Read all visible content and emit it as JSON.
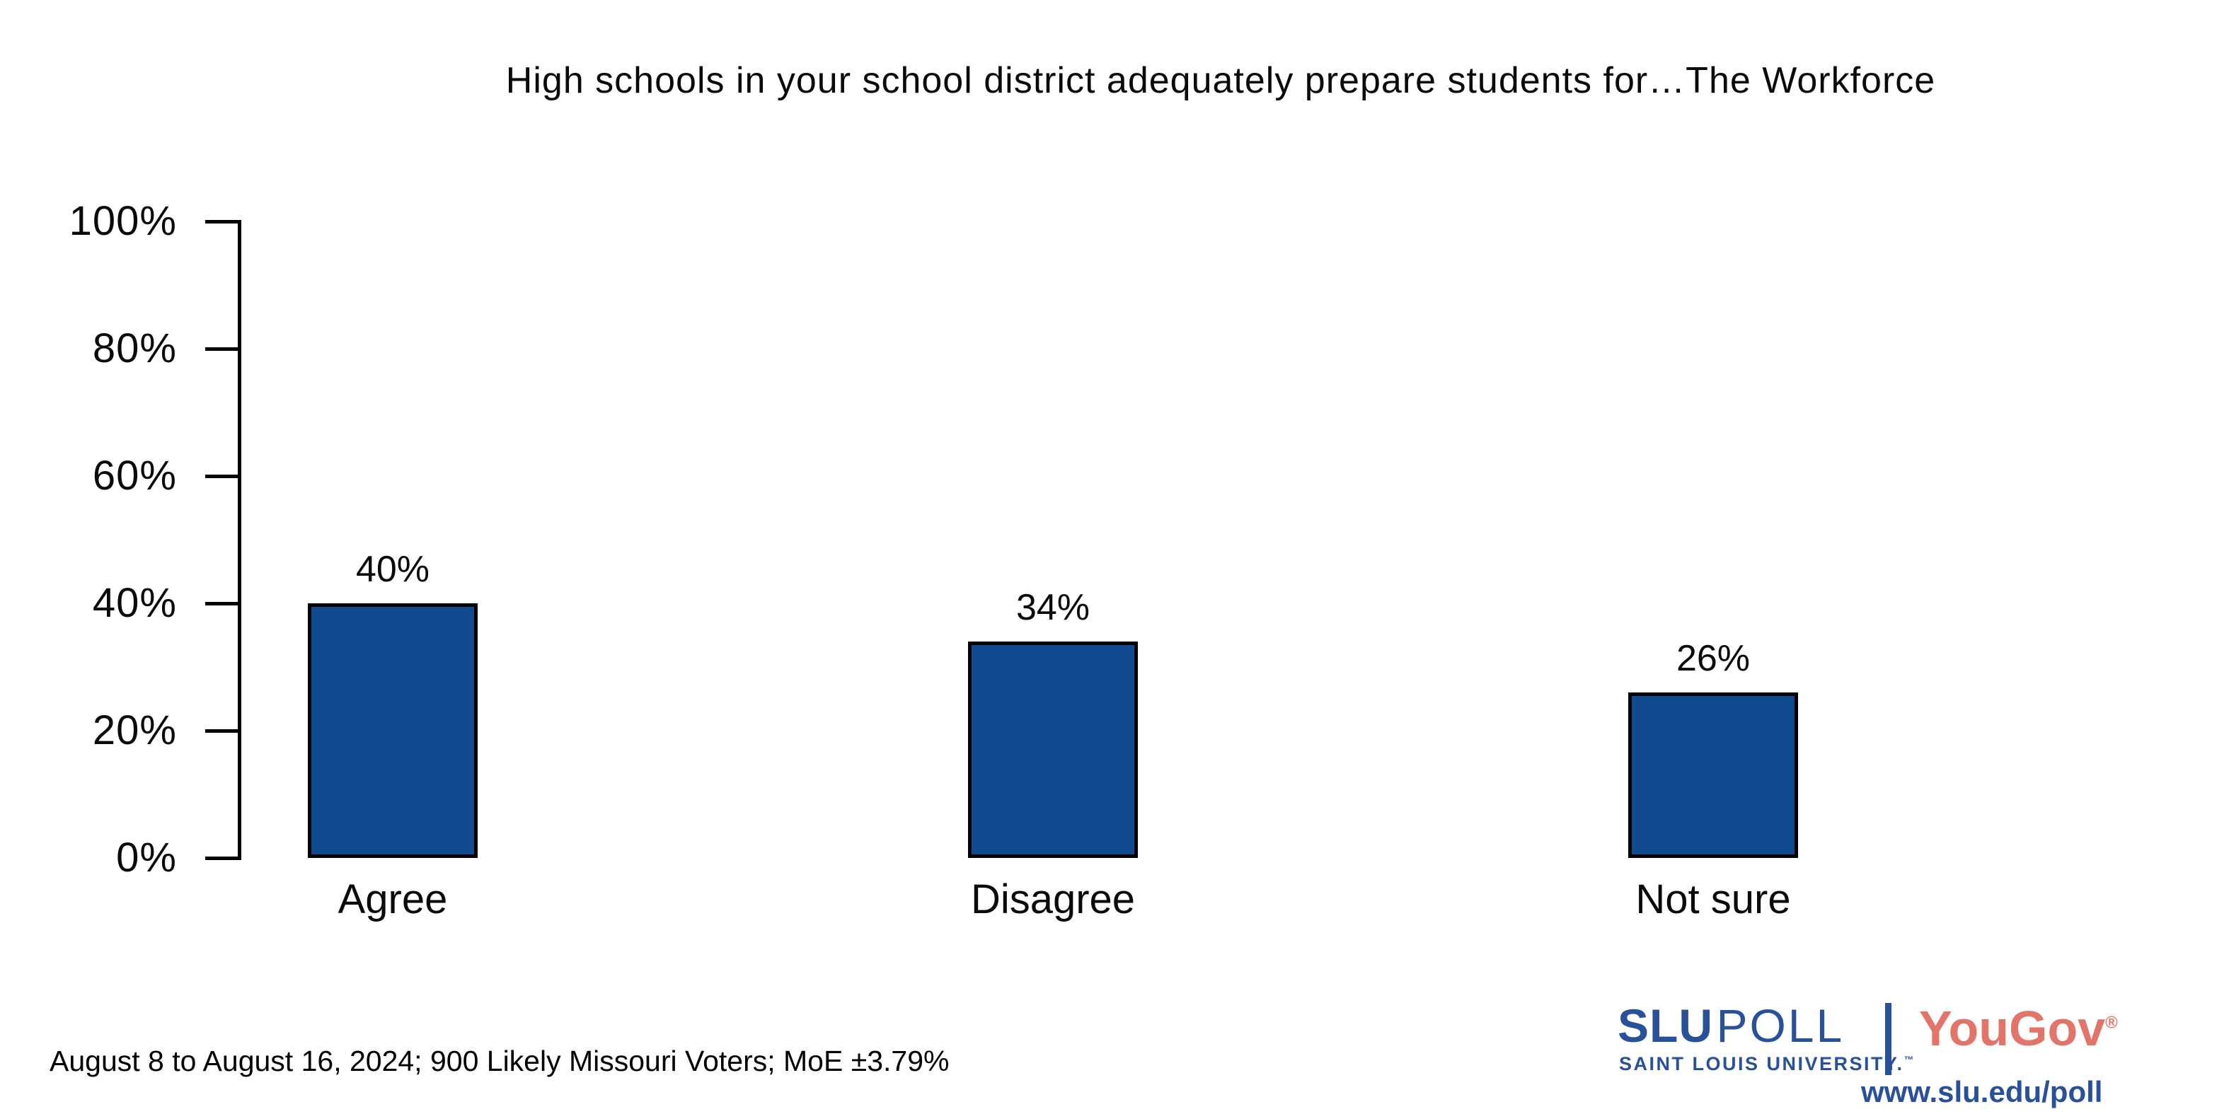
{
  "title": "High schools in your school district adequately prepare students for…The Workforce",
  "chart_data": {
    "type": "bar",
    "title": "High schools in your school district adequately prepare students for…The Workforce",
    "categories": [
      "Agree",
      "Disagree",
      "Not sure"
    ],
    "values": [
      40,
      34,
      26
    ],
    "value_labels": [
      "40%",
      "34%",
      "26%"
    ],
    "xlabel": "",
    "ylabel": "",
    "ylim": [
      0,
      100
    ],
    "ytick_values": [
      0,
      20,
      40,
      60,
      80,
      100
    ],
    "ytick_labels": [
      "0%",
      "20%",
      "40%",
      "60%",
      "80%",
      "100%"
    ],
    "grid": false,
    "legend": false,
    "bar_color": "#124A8F",
    "bar_border_color": "#000000",
    "axis_color": "#000000"
  },
  "footer": {
    "note": "August 8 to August 16, 2024; 900 Likely Missouri Voters; MoE ±3.79%"
  },
  "branding": {
    "slu": "SLU",
    "poll": "POLL",
    "slu_subtitle": "SAINT LOUIS UNIVERSITY.",
    "trademark": "™",
    "yougov": "YouGov",
    "registered_mark": "®",
    "url": "www.slu.edu/poll",
    "slu_blue": "#29519A",
    "yougov_coral": "#E2746A"
  }
}
